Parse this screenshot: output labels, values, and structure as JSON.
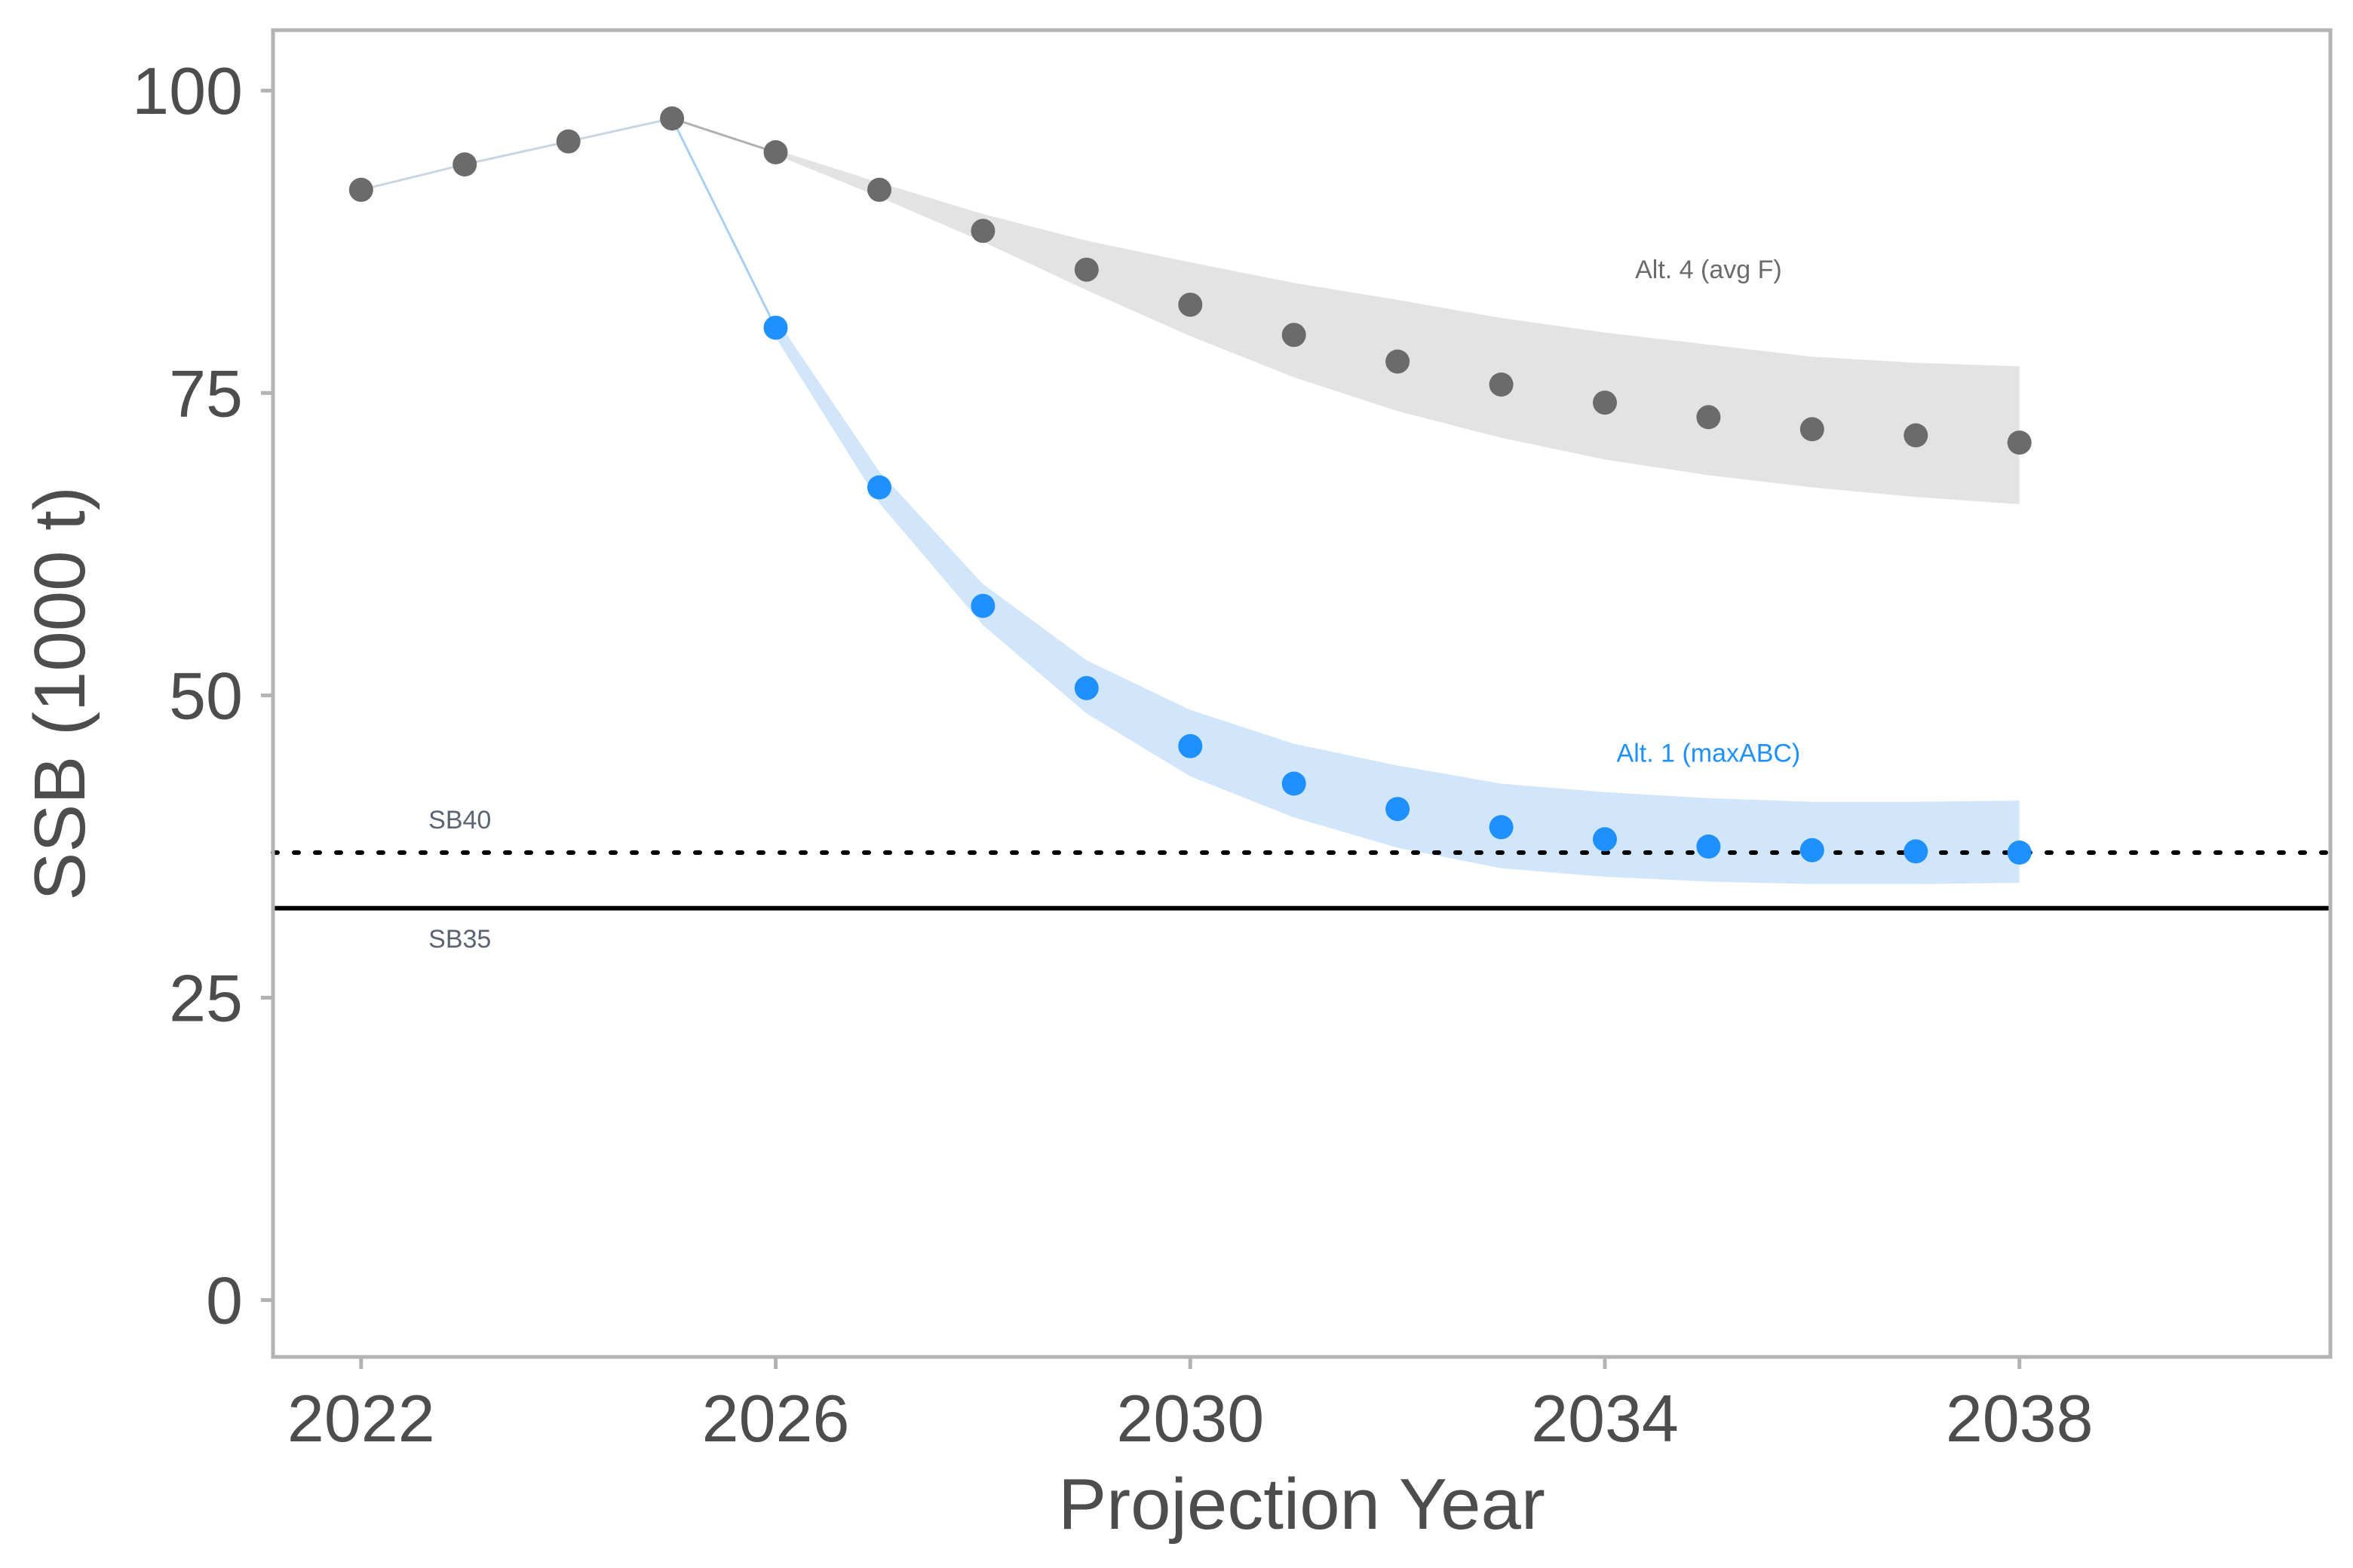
{
  "chart_data": {
    "type": "line",
    "xlabel": "Projection Year",
    "ylabel": "SSB (1000 t)",
    "xlim": [
      2021.15,
      2041.0
    ],
    "ylim": [
      -4.7,
      105.0
    ],
    "x_ticks": [
      2022,
      2026,
      2030,
      2034,
      2038
    ],
    "y_ticks": [
      0,
      25,
      50,
      75,
      100
    ],
    "grid": false,
    "legend": "none",
    "colors": {
      "alt1": "#1e90ff",
      "alt1_band": "#d2e6fb",
      "alt4": "#6b6b6b",
      "alt4_band": "#e3e3e3",
      "panel_border": "#b3b3b3",
      "reference_line": "#000000",
      "reference_label": "#5a6473"
    },
    "series": [
      {
        "name": "Alt. 4 (avg F)",
        "x": [
          2022,
          2023,
          2024,
          2025,
          2026,
          2027,
          2028,
          2029,
          2030,
          2031,
          2032,
          2033,
          2034,
          2035,
          2036,
          2037,
          2038
        ],
        "y": [
          91.8,
          93.9,
          95.8,
          97.7,
          94.9,
          91.8,
          88.4,
          85.2,
          82.3,
          79.8,
          77.6,
          75.7,
          74.2,
          73.0,
          72.0,
          71.5,
          70.9
        ],
        "lower": [
          91.8,
          93.9,
          95.8,
          97.7,
          94.7,
          91.2,
          87.5,
          83.5,
          79.7,
          76.3,
          73.5,
          71.3,
          69.5,
          68.2,
          67.2,
          66.4,
          65.8
        ],
        "upper": [
          91.8,
          93.9,
          95.8,
          97.7,
          95.1,
          92.4,
          89.8,
          87.6,
          85.8,
          84.1,
          82.7,
          81.2,
          80.0,
          79.0,
          78.0,
          77.5,
          77.2
        ]
      },
      {
        "name": "Alt. 1 (maxABC)",
        "x": [
          2022,
          2023,
          2024,
          2025,
          2026,
          2027,
          2028,
          2029,
          2030,
          2031,
          2032,
          2033,
          2034,
          2035,
          2036,
          2037,
          2038
        ],
        "y": [
          91.8,
          93.9,
          95.8,
          97.7,
          80.4,
          67.2,
          57.4,
          50.6,
          45.8,
          42.7,
          40.6,
          39.1,
          38.1,
          37.5,
          37.2,
          37.1,
          37.0
        ],
        "lower": [
          91.8,
          93.9,
          95.8,
          97.7,
          79.6,
          65.9,
          55.8,
          48.5,
          43.3,
          39.9,
          37.4,
          35.7,
          35.0,
          34.6,
          34.4,
          34.4,
          34.5
        ],
        "upper": [
          91.8,
          93.9,
          95.8,
          97.7,
          81.2,
          68.5,
          59.2,
          52.9,
          48.8,
          46.0,
          44.2,
          42.7,
          42.0,
          41.5,
          41.2,
          41.2,
          41.3
        ]
      }
    ],
    "reference_lines": [
      {
        "label": "SB40",
        "y": 37.0,
        "style": "dotted"
      },
      {
        "label": "SB35",
        "y": 32.4,
        "style": "solid"
      }
    ],
    "annotations": [
      {
        "text": "Alt. 4 (avg F)",
        "x": 2035.0,
        "y": 84.5,
        "series": "alt4"
      },
      {
        "text": "Alt. 1 (maxABC)",
        "x": 2035.0,
        "y": 44.5,
        "series": "alt1"
      }
    ]
  }
}
